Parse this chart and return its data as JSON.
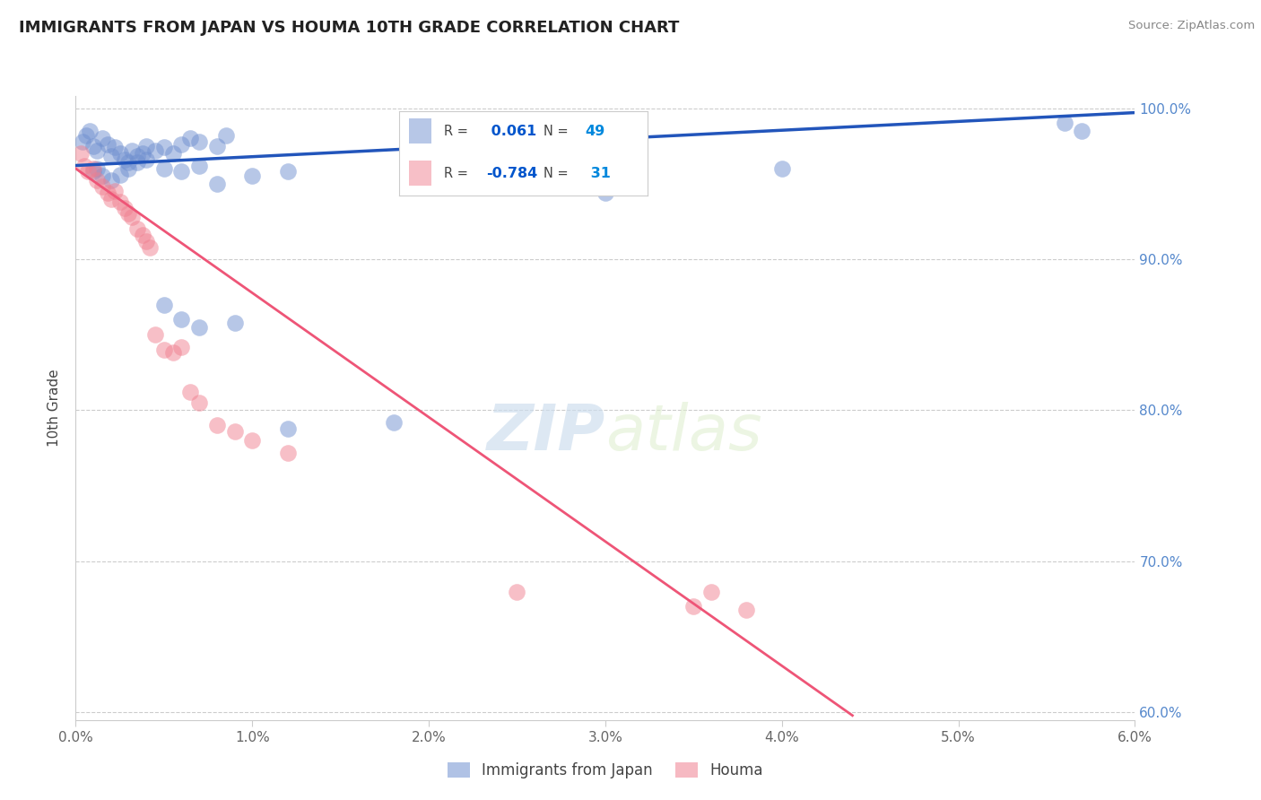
{
  "title": "IMMIGRANTS FROM JAPAN VS HOUMA 10TH GRADE CORRELATION CHART",
  "source": "Source: ZipAtlas.com",
  "ylabel_label": "10th Grade",
  "xlim": [
    0.0,
    0.06
  ],
  "ylim": [
    0.595,
    1.008
  ],
  "x_tick_labels": [
    "0.0%",
    "1.0%",
    "2.0%",
    "3.0%",
    "4.0%",
    "5.0%",
    "6.0%"
  ],
  "x_tick_vals": [
    0.0,
    0.01,
    0.02,
    0.03,
    0.04,
    0.05,
    0.06
  ],
  "y_tick_labels": [
    "60.0%",
    "70.0%",
    "80.0%",
    "90.0%",
    "100.0%"
  ],
  "y_tick_vals": [
    0.6,
    0.7,
    0.8,
    0.9,
    1.0
  ],
  "blue_R": 0.061,
  "blue_N": 49,
  "pink_R": -0.784,
  "pink_N": 31,
  "blue_color": "#7090D0",
  "pink_color": "#F08090",
  "blue_line_color": "#2255BB",
  "pink_line_color": "#EE5577",
  "legend_R_color": "#0055CC",
  "legend_N_color": "#0088DD",
  "watermark_zip": "ZIP",
  "watermark_atlas": "atlas",
  "blue_scatter_x": [
    0.0004,
    0.0006,
    0.0008,
    0.001,
    0.0012,
    0.0015,
    0.0018,
    0.002,
    0.0022,
    0.0025,
    0.0028,
    0.003,
    0.0032,
    0.0035,
    0.0038,
    0.004,
    0.0045,
    0.005,
    0.0055,
    0.006,
    0.0065,
    0.007,
    0.008,
    0.0085,
    0.001,
    0.0012,
    0.0015,
    0.002,
    0.0025,
    0.003,
    0.0035,
    0.004,
    0.005,
    0.006,
    0.007,
    0.008,
    0.01,
    0.012,
    0.025,
    0.03,
    0.04,
    0.005,
    0.006,
    0.007,
    0.009,
    0.018,
    0.056,
    0.057,
    0.012
  ],
  "blue_scatter_y": [
    0.978,
    0.982,
    0.985,
    0.975,
    0.972,
    0.98,
    0.976,
    0.968,
    0.974,
    0.97,
    0.966,
    0.964,
    0.972,
    0.968,
    0.97,
    0.975,
    0.972,
    0.974,
    0.97,
    0.976,
    0.98,
    0.978,
    0.975,
    0.982,
    0.958,
    0.96,
    0.955,
    0.952,
    0.956,
    0.96,
    0.964,
    0.966,
    0.96,
    0.958,
    0.962,
    0.95,
    0.955,
    0.958,
    0.948,
    0.944,
    0.96,
    0.87,
    0.86,
    0.855,
    0.858,
    0.792,
    0.99,
    0.985,
    0.788
  ],
  "pink_scatter_x": [
    0.0003,
    0.0005,
    0.0007,
    0.001,
    0.0012,
    0.0015,
    0.0018,
    0.002,
    0.0022,
    0.0025,
    0.0028,
    0.003,
    0.0032,
    0.0035,
    0.0038,
    0.004,
    0.0042,
    0.0045,
    0.005,
    0.0055,
    0.006,
    0.0065,
    0.007,
    0.008,
    0.009,
    0.01,
    0.012,
    0.025,
    0.035,
    0.036,
    0.038
  ],
  "pink_scatter_y": [
    0.97,
    0.962,
    0.958,
    0.96,
    0.952,
    0.948,
    0.944,
    0.94,
    0.945,
    0.938,
    0.934,
    0.93,
    0.928,
    0.92,
    0.916,
    0.912,
    0.908,
    0.85,
    0.84,
    0.838,
    0.842,
    0.812,
    0.805,
    0.79,
    0.786,
    0.78,
    0.772,
    0.68,
    0.67,
    0.68,
    0.668
  ],
  "blue_line_x": [
    0.0,
    0.06
  ],
  "blue_line_y": [
    0.962,
    0.997
  ],
  "pink_line_x": [
    0.0,
    0.044
  ],
  "pink_line_y": [
    0.96,
    0.598
  ]
}
